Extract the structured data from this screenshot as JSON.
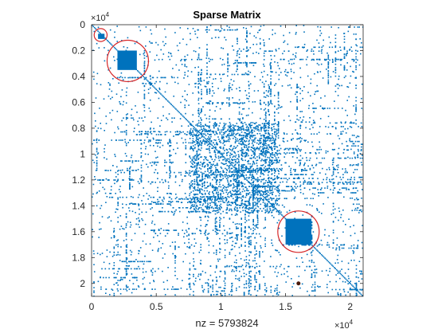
{
  "chart_data": {
    "type": "scatter",
    "title": "Sparse Matrix",
    "xlabel": "nz = 5793824",
    "ylabel": "",
    "axis_multiplier": "×10",
    "axis_multiplier_exp": "4",
    "xlim": [
      0,
      21000
    ],
    "ylim": [
      0,
      21000
    ],
    "y_reversed": true,
    "x_ticks": [
      0,
      5000,
      10000,
      15000,
      20000
    ],
    "x_tick_labels": [
      "0",
      "0.5",
      "1",
      "1.5",
      "2"
    ],
    "y_ticks": [
      0,
      2000,
      4000,
      6000,
      8000,
      10000,
      12000,
      14000,
      16000,
      18000,
      20000
    ],
    "y_tick_labels": [
      "0",
      "0.2",
      "0.4",
      "0.6",
      "0.8",
      "1",
      "1.2",
      "1.4",
      "1.6",
      "1.8",
      "2"
    ],
    "nonzero_color": "#0072BD",
    "highlight_color": "#D62728",
    "dense_blocks": [
      {
        "x0": 500,
        "x1": 1000,
        "y0": 700,
        "y1": 1100
      },
      {
        "x0": 2000,
        "x1": 3500,
        "y0": 2000,
        "y1": 3500
      },
      {
        "x0": 15000,
        "x1": 17000,
        "y0": 15000,
        "y1": 17000
      }
    ],
    "highlight_circles": [
      {
        "cx": 700,
        "cy": 800,
        "r": 500
      },
      {
        "cx": 2800,
        "cy": 2800,
        "r": 1600
      },
      {
        "cx": 16000,
        "cy": 16000,
        "r": 1600
      }
    ],
    "isolated_entry": {
      "x": 16000,
      "y": 20000
    }
  }
}
